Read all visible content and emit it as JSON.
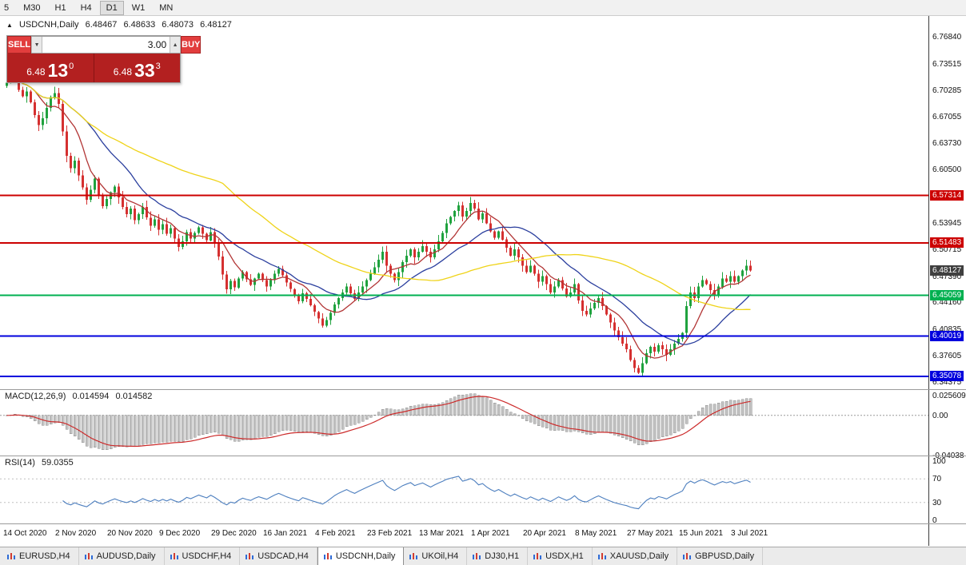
{
  "toolbar": {
    "timeframes": [
      "5",
      "M30",
      "H1",
      "H4",
      "D1",
      "W1",
      "MN"
    ],
    "active": "D1"
  },
  "chart_header": {
    "marker": "▲",
    "symbol": "USDCNH,Daily",
    "open": "6.48467",
    "high": "6.48633",
    "low": "6.48073",
    "close": "6.48127"
  },
  "trade_panel": {
    "sell_label": "SELL",
    "buy_label": "BUY",
    "volume": "3.00",
    "down_arrow": "▼",
    "up_arrow": "▲",
    "sell_price": {
      "prefix": "6.48",
      "big": "13",
      "sup": "0"
    },
    "buy_price": {
      "prefix": "6.48",
      "big": "33",
      "sup": "3"
    }
  },
  "indicators": {
    "macd": {
      "title": "MACD(12,26,9)",
      "value_main": "0.014594",
      "value_signal": "0.014582"
    },
    "rsi": {
      "title": "RSI(14)",
      "value": "59.0355"
    }
  },
  "tabs": {
    "items": [
      {
        "label": "EURUSD,H4"
      },
      {
        "label": "AUDUSD,Daily"
      },
      {
        "label": "USDCHF,H4"
      },
      {
        "label": "USDCAD,H4"
      },
      {
        "label": "USDCNH,Daily",
        "active": true
      },
      {
        "label": "UKOil,H4"
      },
      {
        "label": "DJ30,H1"
      },
      {
        "label": "USDX,H1"
      },
      {
        "label": "XAUUSD,Daily"
      },
      {
        "label": "GBPUSD,Daily"
      }
    ]
  },
  "chart_data": {
    "type": "candlestick",
    "symbol": "USDCNH",
    "period": "Daily",
    "bars_per_label": 13,
    "x_labels": [
      "14 Oct 2020",
      "2 Nov 2020",
      "20 Nov 2020",
      "9 Dec 2020",
      "29 Dec 2020",
      "16 Jan 2021",
      "4 Feb 2021",
      "23 Feb 2021",
      "13 Mar 2021",
      "1 Apr 2021",
      "20 Apr 2021",
      "8 May 2021",
      "27 May 2021",
      "15 Jun 2021",
      "3 Jul 2021"
    ],
    "price_axis": {
      "min": 6.3349,
      "max": 6.794,
      "labels": [
        "6.76840",
        "6.73515",
        "6.70285",
        "6.67055",
        "6.63730",
        "6.60500",
        "6.57270",
        "6.53945",
        "6.50715",
        "6.47390",
        "6.44160",
        "6.40835",
        "6.37605",
        "6.34375"
      ]
    },
    "colors": {
      "up": "#1fa23e",
      "down": "#d53030"
    },
    "first_open": 6.708,
    "closes": [
      6.712,
      6.718,
      6.726,
      6.703,
      6.695,
      6.701,
      6.688,
      6.672,
      6.66,
      6.668,
      6.681,
      6.694,
      6.699,
      6.686,
      6.652,
      6.622,
      6.607,
      6.616,
      6.598,
      6.583,
      6.568,
      6.58,
      6.594,
      6.573,
      6.56,
      6.569,
      6.577,
      6.584,
      6.571,
      6.559,
      6.55,
      6.557,
      6.543,
      6.55,
      6.559,
      6.546,
      6.536,
      6.544,
      6.531,
      6.538,
      6.526,
      6.533,
      6.52,
      6.51,
      6.517,
      6.528,
      6.52,
      6.527,
      6.534,
      6.526,
      6.518,
      6.528,
      6.516,
      6.498,
      6.476,
      6.458,
      6.468,
      6.46,
      6.471,
      6.479,
      6.47,
      6.463,
      6.471,
      6.477,
      6.469,
      6.461,
      6.469,
      6.477,
      6.483,
      6.475,
      6.466,
      6.458,
      6.45,
      6.443,
      6.453,
      6.446,
      6.438,
      6.43,
      6.422,
      6.413,
      6.42,
      6.429,
      6.439,
      6.447,
      6.454,
      6.461,
      6.453,
      6.446,
      6.454,
      6.461,
      6.469,
      6.477,
      6.485,
      6.494,
      6.504,
      6.487,
      6.477,
      6.469,
      6.479,
      6.491,
      6.499,
      6.507,
      6.497,
      6.504,
      6.511,
      6.504,
      6.497,
      6.507,
      6.517,
      6.527,
      6.539,
      6.547,
      6.554,
      6.561,
      6.547,
      6.554,
      6.564,
      6.557,
      6.544,
      6.551,
      6.539,
      6.529,
      6.521,
      6.529,
      6.519,
      6.509,
      6.499,
      6.507,
      6.497,
      6.487,
      6.479,
      6.487,
      6.477,
      6.467,
      6.474,
      6.464,
      6.454,
      6.461,
      6.469,
      6.459,
      6.449,
      6.454,
      6.464,
      6.444,
      6.431,
      6.427,
      6.434,
      6.441,
      6.447,
      6.437,
      6.427,
      6.417,
      6.407,
      6.399,
      6.391,
      6.384,
      6.371,
      6.361,
      6.355,
      6.367,
      6.379,
      6.387,
      6.381,
      6.389,
      6.384,
      6.377,
      6.384,
      6.391,
      6.397,
      6.404,
      6.437,
      6.454,
      6.447,
      6.461,
      6.469,
      6.464,
      6.457,
      6.451,
      6.461,
      6.471,
      6.467,
      6.474,
      6.467,
      6.474,
      6.481,
      6.487,
      6.481
    ],
    "ma": [
      {
        "type": "sma",
        "period": 8,
        "color": "#b23535"
      },
      {
        "type": "sma",
        "period": 21,
        "color": "#2b3f9e"
      },
      {
        "type": "sma",
        "period": 55,
        "color": "#efd318"
      }
    ],
    "levels": [
      {
        "price": 6.57314,
        "label": "6.57314",
        "color": "#cc0000",
        "width": 2
      },
      {
        "price": 6.51483,
        "label": "6.51483",
        "color": "#cc0000",
        "width": 2
      },
      {
        "price": 6.48127,
        "label": "6.48127",
        "color": "#3f3f3f",
        "line": false
      },
      {
        "price": 6.45059,
        "label": "6.45059",
        "color": "#00b050",
        "width": 2
      },
      {
        "price": 6.40019,
        "label": "6.40019",
        "color": "#0000dd",
        "width": 2
      },
      {
        "price": 6.35078,
        "label": "6.35078",
        "color": "#0000dd",
        "width": 2
      }
    ],
    "macd": {
      "fast": 12,
      "slow": 26,
      "signal": 9,
      "range": [
        -0.04038,
        0.025609
      ],
      "axis": [
        "0.025609",
        "0.00",
        "-0.04038"
      ],
      "histogram_color": "#c4c4c4",
      "signal_color": "#cc2b2b"
    },
    "rsi": {
      "period": 14,
      "axis": [
        "100",
        "70",
        "30",
        "0"
      ],
      "levels": [
        70,
        30
      ],
      "color": "#4d7fbf"
    }
  }
}
